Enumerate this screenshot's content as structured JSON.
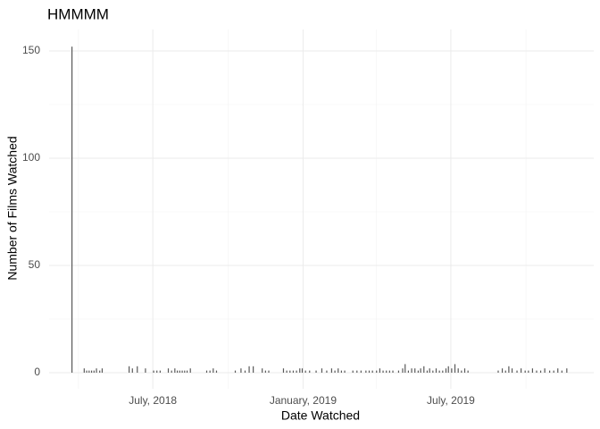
{
  "chart_data": {
    "type": "bar",
    "title": "HMMMM",
    "xlabel": "Date Watched",
    "ylabel": "Number of Films Watched",
    "x": [
      "2018-03-24",
      "2018-04-08",
      "2018-04-11",
      "2018-04-14",
      "2018-04-17",
      "2018-04-20",
      "2018-04-23",
      "2018-04-27",
      "2018-04-30",
      "2018-06-02",
      "2018-06-06",
      "2018-06-12",
      "2018-06-22",
      "2018-07-02",
      "2018-07-06",
      "2018-07-10",
      "2018-07-20",
      "2018-07-24",
      "2018-07-28",
      "2018-07-31",
      "2018-08-03",
      "2018-08-06",
      "2018-08-09",
      "2018-08-12",
      "2018-08-16",
      "2018-09-05",
      "2018-09-09",
      "2018-09-13",
      "2018-09-17",
      "2018-10-10",
      "2018-10-17",
      "2018-10-22",
      "2018-10-27",
      "2018-11-01",
      "2018-11-12",
      "2018-11-16",
      "2018-11-20",
      "2018-12-08",
      "2018-12-12",
      "2018-12-16",
      "2018-12-20",
      "2018-12-24",
      "2018-12-28",
      "2018-12-31",
      "2019-01-04",
      "2019-01-09",
      "2019-01-17",
      "2019-01-24",
      "2019-01-30",
      "2019-02-05",
      "2019-02-09",
      "2019-02-13",
      "2019-02-17",
      "2019-02-21",
      "2019-03-03",
      "2019-03-08",
      "2019-03-13",
      "2019-03-19",
      "2019-03-23",
      "2019-03-27",
      "2019-04-01",
      "2019-04-05",
      "2019-04-09",
      "2019-04-13",
      "2019-04-17",
      "2019-04-21",
      "2019-04-28",
      "2019-05-03",
      "2019-05-06",
      "2019-05-10",
      "2019-05-14",
      "2019-05-18",
      "2019-05-22",
      "2019-05-25",
      "2019-05-29",
      "2019-06-02",
      "2019-06-05",
      "2019-06-09",
      "2019-06-13",
      "2019-06-17",
      "2019-06-21",
      "2019-06-25",
      "2019-06-28",
      "2019-07-02",
      "2019-07-06",
      "2019-07-10",
      "2019-07-14",
      "2019-07-18",
      "2019-07-22",
      "2019-08-28",
      "2019-09-02",
      "2019-09-06",
      "2019-09-10",
      "2019-09-14",
      "2019-09-20",
      "2019-09-25",
      "2019-09-30",
      "2019-10-04",
      "2019-10-09",
      "2019-10-14",
      "2019-10-19",
      "2019-10-24",
      "2019-10-30",
      "2019-11-04",
      "2019-11-09",
      "2019-11-14",
      "2019-11-20"
    ],
    "values": [
      152,
      2,
      1,
      1,
      1,
      1,
      2,
      1,
      2,
      3,
      2,
      3,
      2,
      1,
      1,
      1,
      2,
      1,
      2,
      1,
      1,
      1,
      1,
      1,
      2,
      1,
      1,
      2,
      1,
      1,
      2,
      1,
      3,
      3,
      2,
      1,
      1,
      2,
      1,
      1,
      1,
      1,
      2,
      2,
      1,
      1,
      1,
      2,
      1,
      2,
      1,
      2,
      1,
      1,
      1,
      1,
      1,
      1,
      1,
      1,
      1,
      2,
      1,
      1,
      1,
      1,
      1,
      2,
      4,
      1,
      2,
      2,
      1,
      2,
      3,
      1,
      2,
      1,
      2,
      1,
      1,
      2,
      3,
      2,
      4,
      2,
      1,
      2,
      1,
      1,
      2,
      1,
      3,
      2,
      1,
      2,
      1,
      1,
      2,
      1,
      1,
      2,
      1,
      1,
      2,
      1,
      2
    ],
    "color": "#595959",
    "xlim": [
      "2018-02-24",
      "2019-12-23"
    ],
    "xticks": [
      {
        "value": "2018-07-01",
        "label": "July, 2018"
      },
      {
        "value": "2019-01-01",
        "label": "January, 2019"
      },
      {
        "value": "2019-07-01",
        "label": "July, 2019"
      }
    ],
    "xminorticks": [
      "2018-04-01",
      "2018-10-01",
      "2019-04-01",
      "2019-10-01"
    ],
    "ylim": [
      -7.5,
      160
    ],
    "yticks": [
      0,
      50,
      100,
      150
    ],
    "yminorticks": [
      25,
      75,
      125
    ],
    "grid": true
  }
}
